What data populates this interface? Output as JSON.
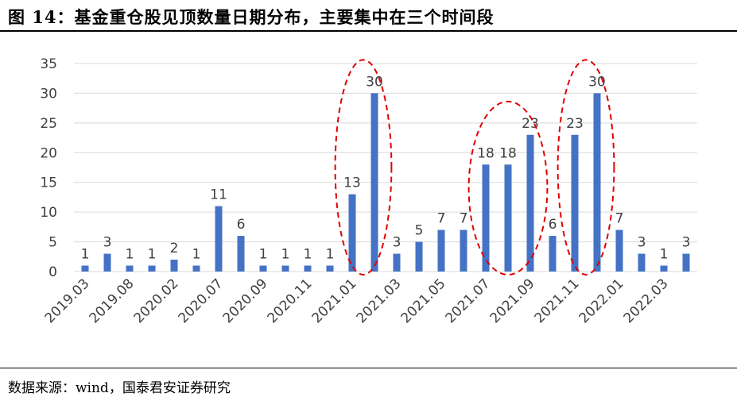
{
  "title": "图 14：基金重仓股见顶数量日期分布，主要集中在三个时间段",
  "source": "数据来源：wind，国泰君安证券研究",
  "colors": {
    "bar": "#4472C4",
    "grid": "#D9D9D9",
    "ellipse": "#E00000",
    "text": "#404040"
  },
  "chart_data": {
    "type": "bar",
    "ylim": [
      0,
      35
    ],
    "yticks": [
      0,
      5,
      10,
      15,
      20,
      25,
      30,
      35
    ],
    "grid": true,
    "tick_labels": [
      "2019.03",
      "2019.08",
      "2020.02",
      "2020.07",
      "2020.09",
      "2020.11",
      "2021.01",
      "2021.03",
      "2021.05",
      "2021.07",
      "2021.09",
      "2021.11",
      "2022.01",
      "2022.03"
    ],
    "values": [
      1,
      3,
      1,
      1,
      2,
      1,
      11,
      6,
      1,
      1,
      1,
      1,
      13,
      30,
      3,
      5,
      7,
      7,
      18,
      18,
      23,
      6,
      23,
      30,
      7,
      3,
      1,
      3
    ],
    "highlight_ranges": [
      [
        12,
        13
      ],
      [
        18,
        20
      ],
      [
        22,
        23
      ]
    ]
  }
}
